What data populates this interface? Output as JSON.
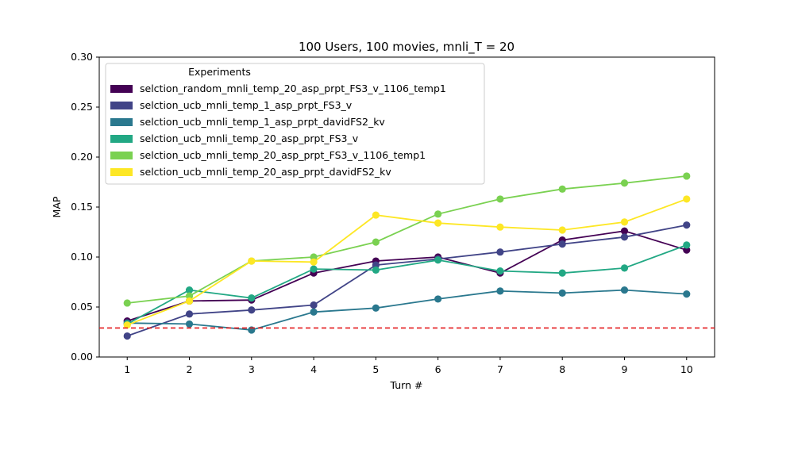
{
  "chart_data": {
    "type": "line",
    "title": "100 Users, 100 movies, mnli_T = 20",
    "xlabel": "Turn #",
    "ylabel": "MAP",
    "x": [
      1,
      2,
      3,
      4,
      5,
      6,
      7,
      8,
      9,
      10
    ],
    "xlim": [
      0.55,
      10.45
    ],
    "ylim": [
      0.0,
      0.3
    ],
    "yticks": [
      "0.00",
      "0.05",
      "0.10",
      "0.15",
      "0.20",
      "0.25",
      "0.30"
    ],
    "xticks": [
      "1",
      "2",
      "3",
      "4",
      "5",
      "6",
      "7",
      "8",
      "9",
      "10"
    ],
    "grid": false,
    "legend": {
      "title": "Experiments",
      "placement": "upper-left"
    },
    "baseline": {
      "value": 0.029,
      "color": "#e41a1c",
      "style": "dashed"
    },
    "series": [
      {
        "name": "selction_random_mnli_temp_20_asp_prpt_FS3_v_1106_temp1",
        "color": "#440154",
        "values": [
          0.036,
          0.056,
          0.057,
          0.084,
          0.096,
          0.1,
          0.084,
          0.117,
          0.126,
          0.107
        ]
      },
      {
        "name": "selction_ucb_mnli_temp_1_asp_prpt_FS3_v",
        "color": "#414487",
        "values": [
          0.021,
          0.043,
          0.047,
          0.052,
          0.092,
          0.098,
          0.105,
          0.113,
          0.12,
          0.132
        ]
      },
      {
        "name": "selction_ucb_mnli_temp_1_asp_prpt_davidFS2_kv",
        "color": "#2a788e",
        "values": [
          0.034,
          0.033,
          0.027,
          0.045,
          0.049,
          0.058,
          0.066,
          0.064,
          0.067,
          0.063
        ]
      },
      {
        "name": "selction_ucb_mnli_temp_20_asp_prpt_FS3_v",
        "color": "#22a884",
        "values": [
          0.033,
          0.067,
          0.059,
          0.088,
          0.087,
          0.097,
          0.086,
          0.084,
          0.089,
          0.112
        ]
      },
      {
        "name": "selction_ucb_mnli_temp_20_asp_prpt_FS3_v_1106_temp1",
        "color": "#7ad151",
        "values": [
          0.054,
          0.061,
          0.096,
          0.1,
          0.115,
          0.143,
          0.158,
          0.168,
          0.174,
          0.181
        ]
      },
      {
        "name": "selction_ucb_mnli_temp_20_asp_prpt_davidFS2_kv",
        "color": "#fde725",
        "values": [
          0.032,
          0.056,
          0.096,
          0.095,
          0.142,
          0.134,
          0.13,
          0.127,
          0.135,
          0.158
        ]
      }
    ]
  }
}
